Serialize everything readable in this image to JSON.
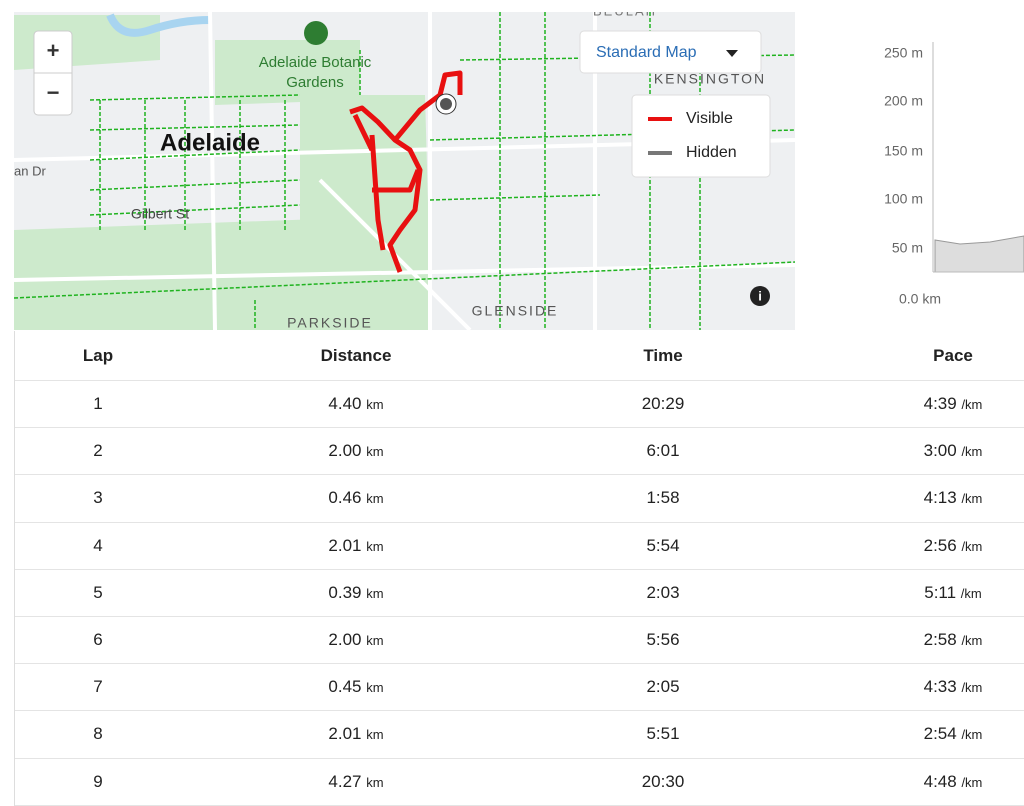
{
  "map": {
    "labels": {
      "botanic_1": "Adelaide Botanic",
      "botanic_2": "Gardens",
      "city": "Adelaide",
      "gilbert": "Gilbert St",
      "kensington": "KENSINGTON",
      "glenside": "GLENSIDE",
      "parkside": "PARKSIDE",
      "road_west": "an Dr",
      "beulah": "BEULAH"
    },
    "zoom_in": "+",
    "zoom_out": "−",
    "map_type": "Standard Map",
    "legend": {
      "visible": "Visible",
      "hidden": "Hidden"
    }
  },
  "elevation": {
    "yticks": [
      "250 m",
      "200 m",
      "150 m",
      "100 m",
      "50 m"
    ],
    "xtick": "0.0 km"
  },
  "table": {
    "headers": [
      "Lap",
      "Distance",
      "Time",
      "Pace"
    ],
    "rows": [
      {
        "lap": "1",
        "distance": "4.40",
        "distance_unit": "km",
        "time": "20:29",
        "pace": "4:39",
        "pace_unit": "/km"
      },
      {
        "lap": "2",
        "distance": "2.00",
        "distance_unit": "km",
        "time": "6:01",
        "pace": "3:00",
        "pace_unit": "/km"
      },
      {
        "lap": "3",
        "distance": "0.46",
        "distance_unit": "km",
        "time": "1:58",
        "pace": "4:13",
        "pace_unit": "/km"
      },
      {
        "lap": "4",
        "distance": "2.01",
        "distance_unit": "km",
        "time": "5:54",
        "pace": "2:56",
        "pace_unit": "/km"
      },
      {
        "lap": "5",
        "distance": "0.39",
        "distance_unit": "km",
        "time": "2:03",
        "pace": "5:11",
        "pace_unit": "/km"
      },
      {
        "lap": "6",
        "distance": "2.00",
        "distance_unit": "km",
        "time": "5:56",
        "pace": "2:58",
        "pace_unit": "/km"
      },
      {
        "lap": "7",
        "distance": "0.45",
        "distance_unit": "km",
        "time": "2:05",
        "pace": "4:33",
        "pace_unit": "/km"
      },
      {
        "lap": "8",
        "distance": "2.01",
        "distance_unit": "km",
        "time": "5:51",
        "pace": "2:54",
        "pace_unit": "/km"
      },
      {
        "lap": "9",
        "distance": "4.27",
        "distance_unit": "km",
        "time": "20:30",
        "pace": "4:48",
        "pace_unit": "/km"
      }
    ]
  }
}
